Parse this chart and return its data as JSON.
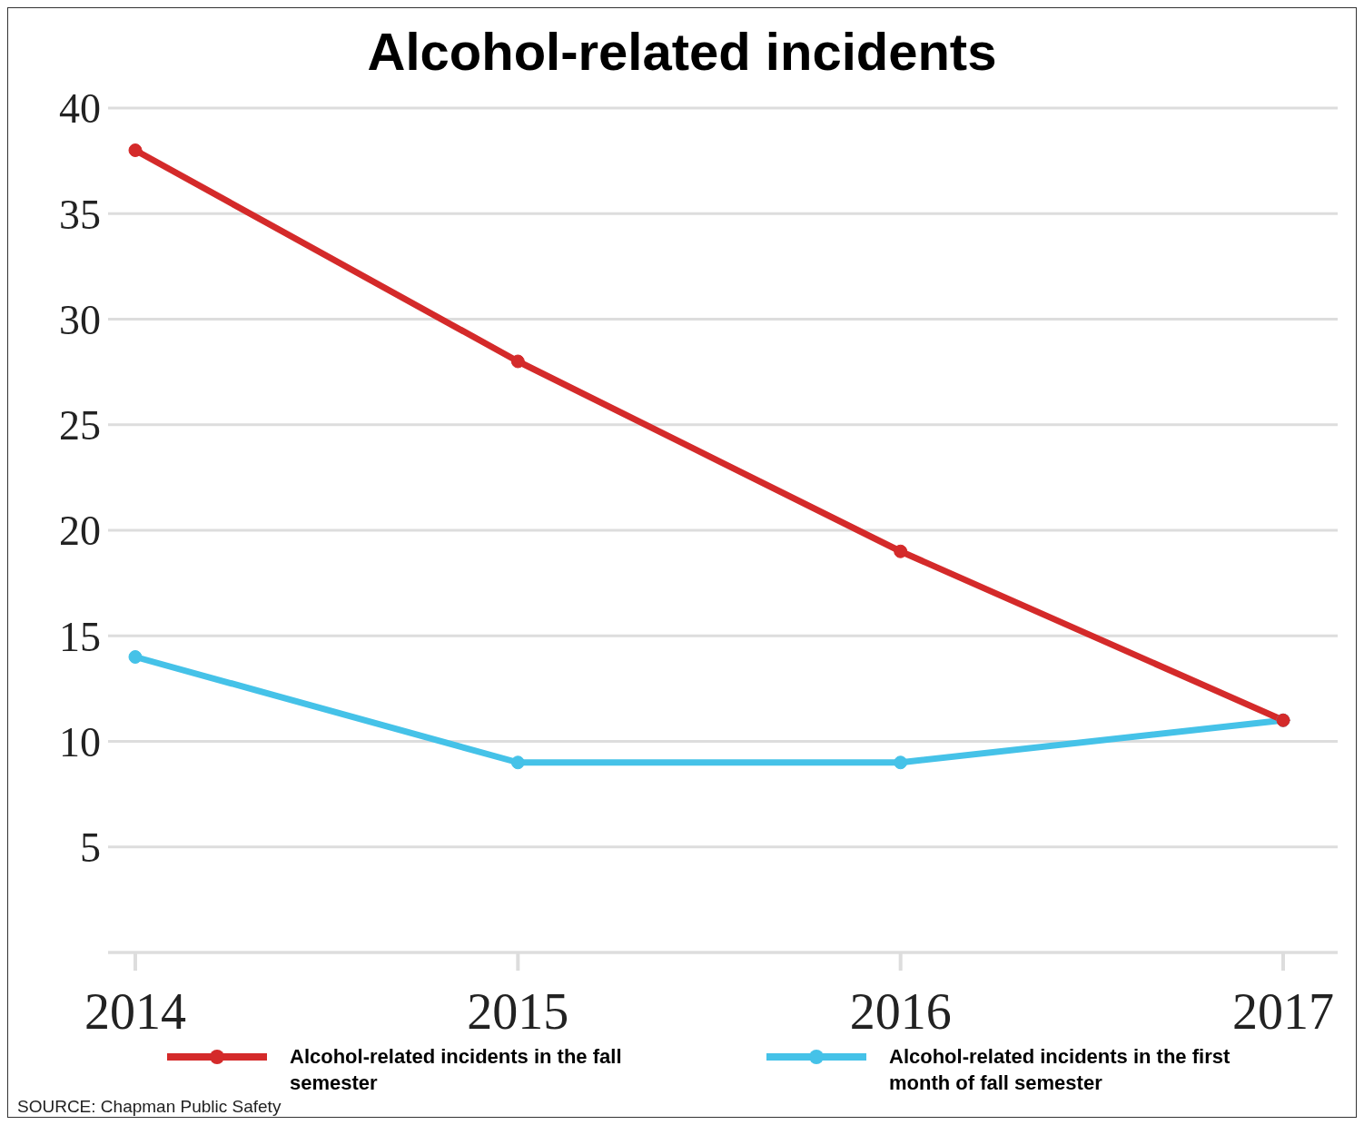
{
  "chart_data": {
    "type": "line",
    "title": "Alcohol-related incidents",
    "categories": [
      "2014",
      "2015",
      "2016",
      "2017"
    ],
    "series": [
      {
        "name": "Alcohol-related incidents in the fall semester",
        "color": "#d42a2a",
        "values": [
          38,
          28,
          19,
          11
        ]
      },
      {
        "name": "Alcohol-related incidents in the first month of fall semester",
        "color": "#45c2e8",
        "values": [
          14,
          9,
          9,
          11
        ]
      }
    ],
    "ylim": [
      0,
      40
    ],
    "yticks": [
      5,
      10,
      15,
      20,
      25,
      30,
      35,
      40
    ],
    "grid": "y",
    "legend": "bottom",
    "marker": "circle",
    "line_style": "solid",
    "annotations": [
      "SOURCE: Chapman Public Safety"
    ]
  }
}
